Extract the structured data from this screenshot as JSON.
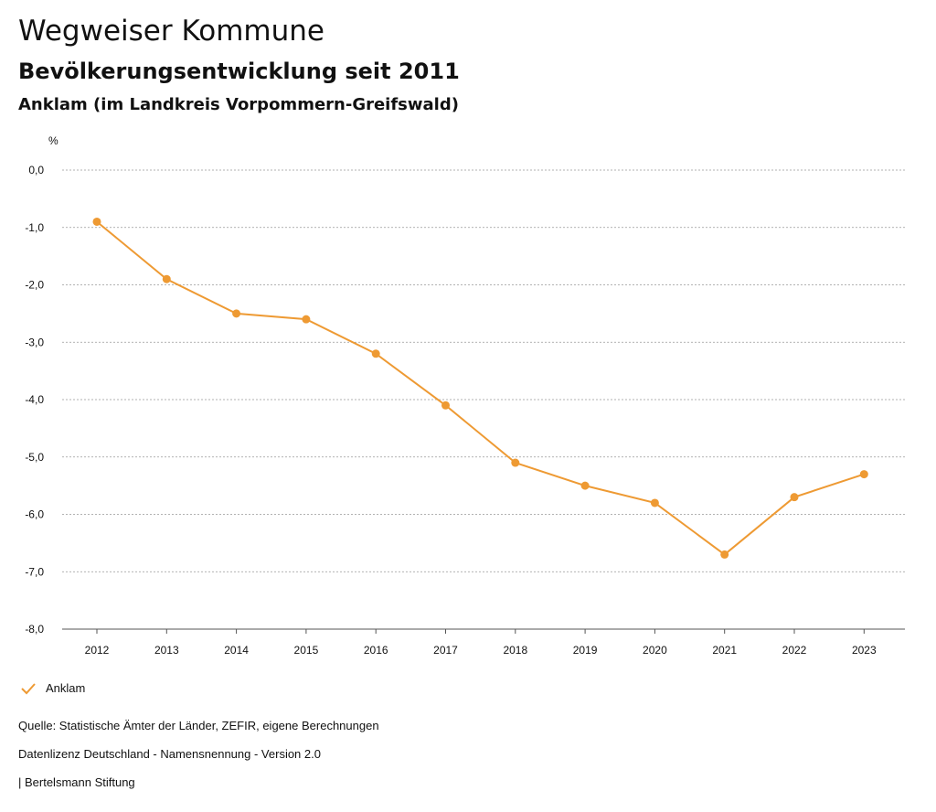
{
  "header": {
    "title": "Wegweiser Kommune",
    "subtitle": "Bevölkerungsentwicklung seit 2011",
    "region": "Anklam (im Landkreis Vorpommern-Greifswald)"
  },
  "legend": {
    "label": "Anklam",
    "icon": "check-icon"
  },
  "footer": {
    "source": "Quelle: Statistische Ämter der Länder, ZEFIR, eigene Berechnungen",
    "license": "Datenlizenz Deutschland - Namensnennung - Version 2.0",
    "publisher": "| Bertelsmann Stiftung"
  },
  "colors": {
    "series": "#EE9A33",
    "grid": "#999999"
  },
  "chart_data": {
    "type": "line",
    "title": "Bevölkerungsentwicklung seit 2011",
    "ylabel": "%",
    "xlabel": "",
    "ylim": [
      -8,
      0
    ],
    "yticks": [
      0,
      -1,
      -2,
      -3,
      -4,
      -5,
      -6,
      -7,
      -8
    ],
    "ytick_labels": [
      "0,0",
      "-1,0",
      "-2,0",
      "-3,0",
      "-4,0",
      "-5,0",
      "-6,0",
      "-7,0",
      "-8,0"
    ],
    "grid": true,
    "legend": "bottom-left",
    "x": [
      "2012",
      "2013",
      "2014",
      "2015",
      "2016",
      "2017",
      "2018",
      "2019",
      "2020",
      "2021",
      "2022",
      "2023"
    ],
    "series": [
      {
        "name": "Anklam",
        "values": [
          -0.9,
          -1.9,
          -2.5,
          -2.6,
          -3.2,
          -4.1,
          -5.1,
          -5.5,
          -5.8,
          -6.7,
          -5.7,
          -5.3
        ]
      }
    ]
  }
}
